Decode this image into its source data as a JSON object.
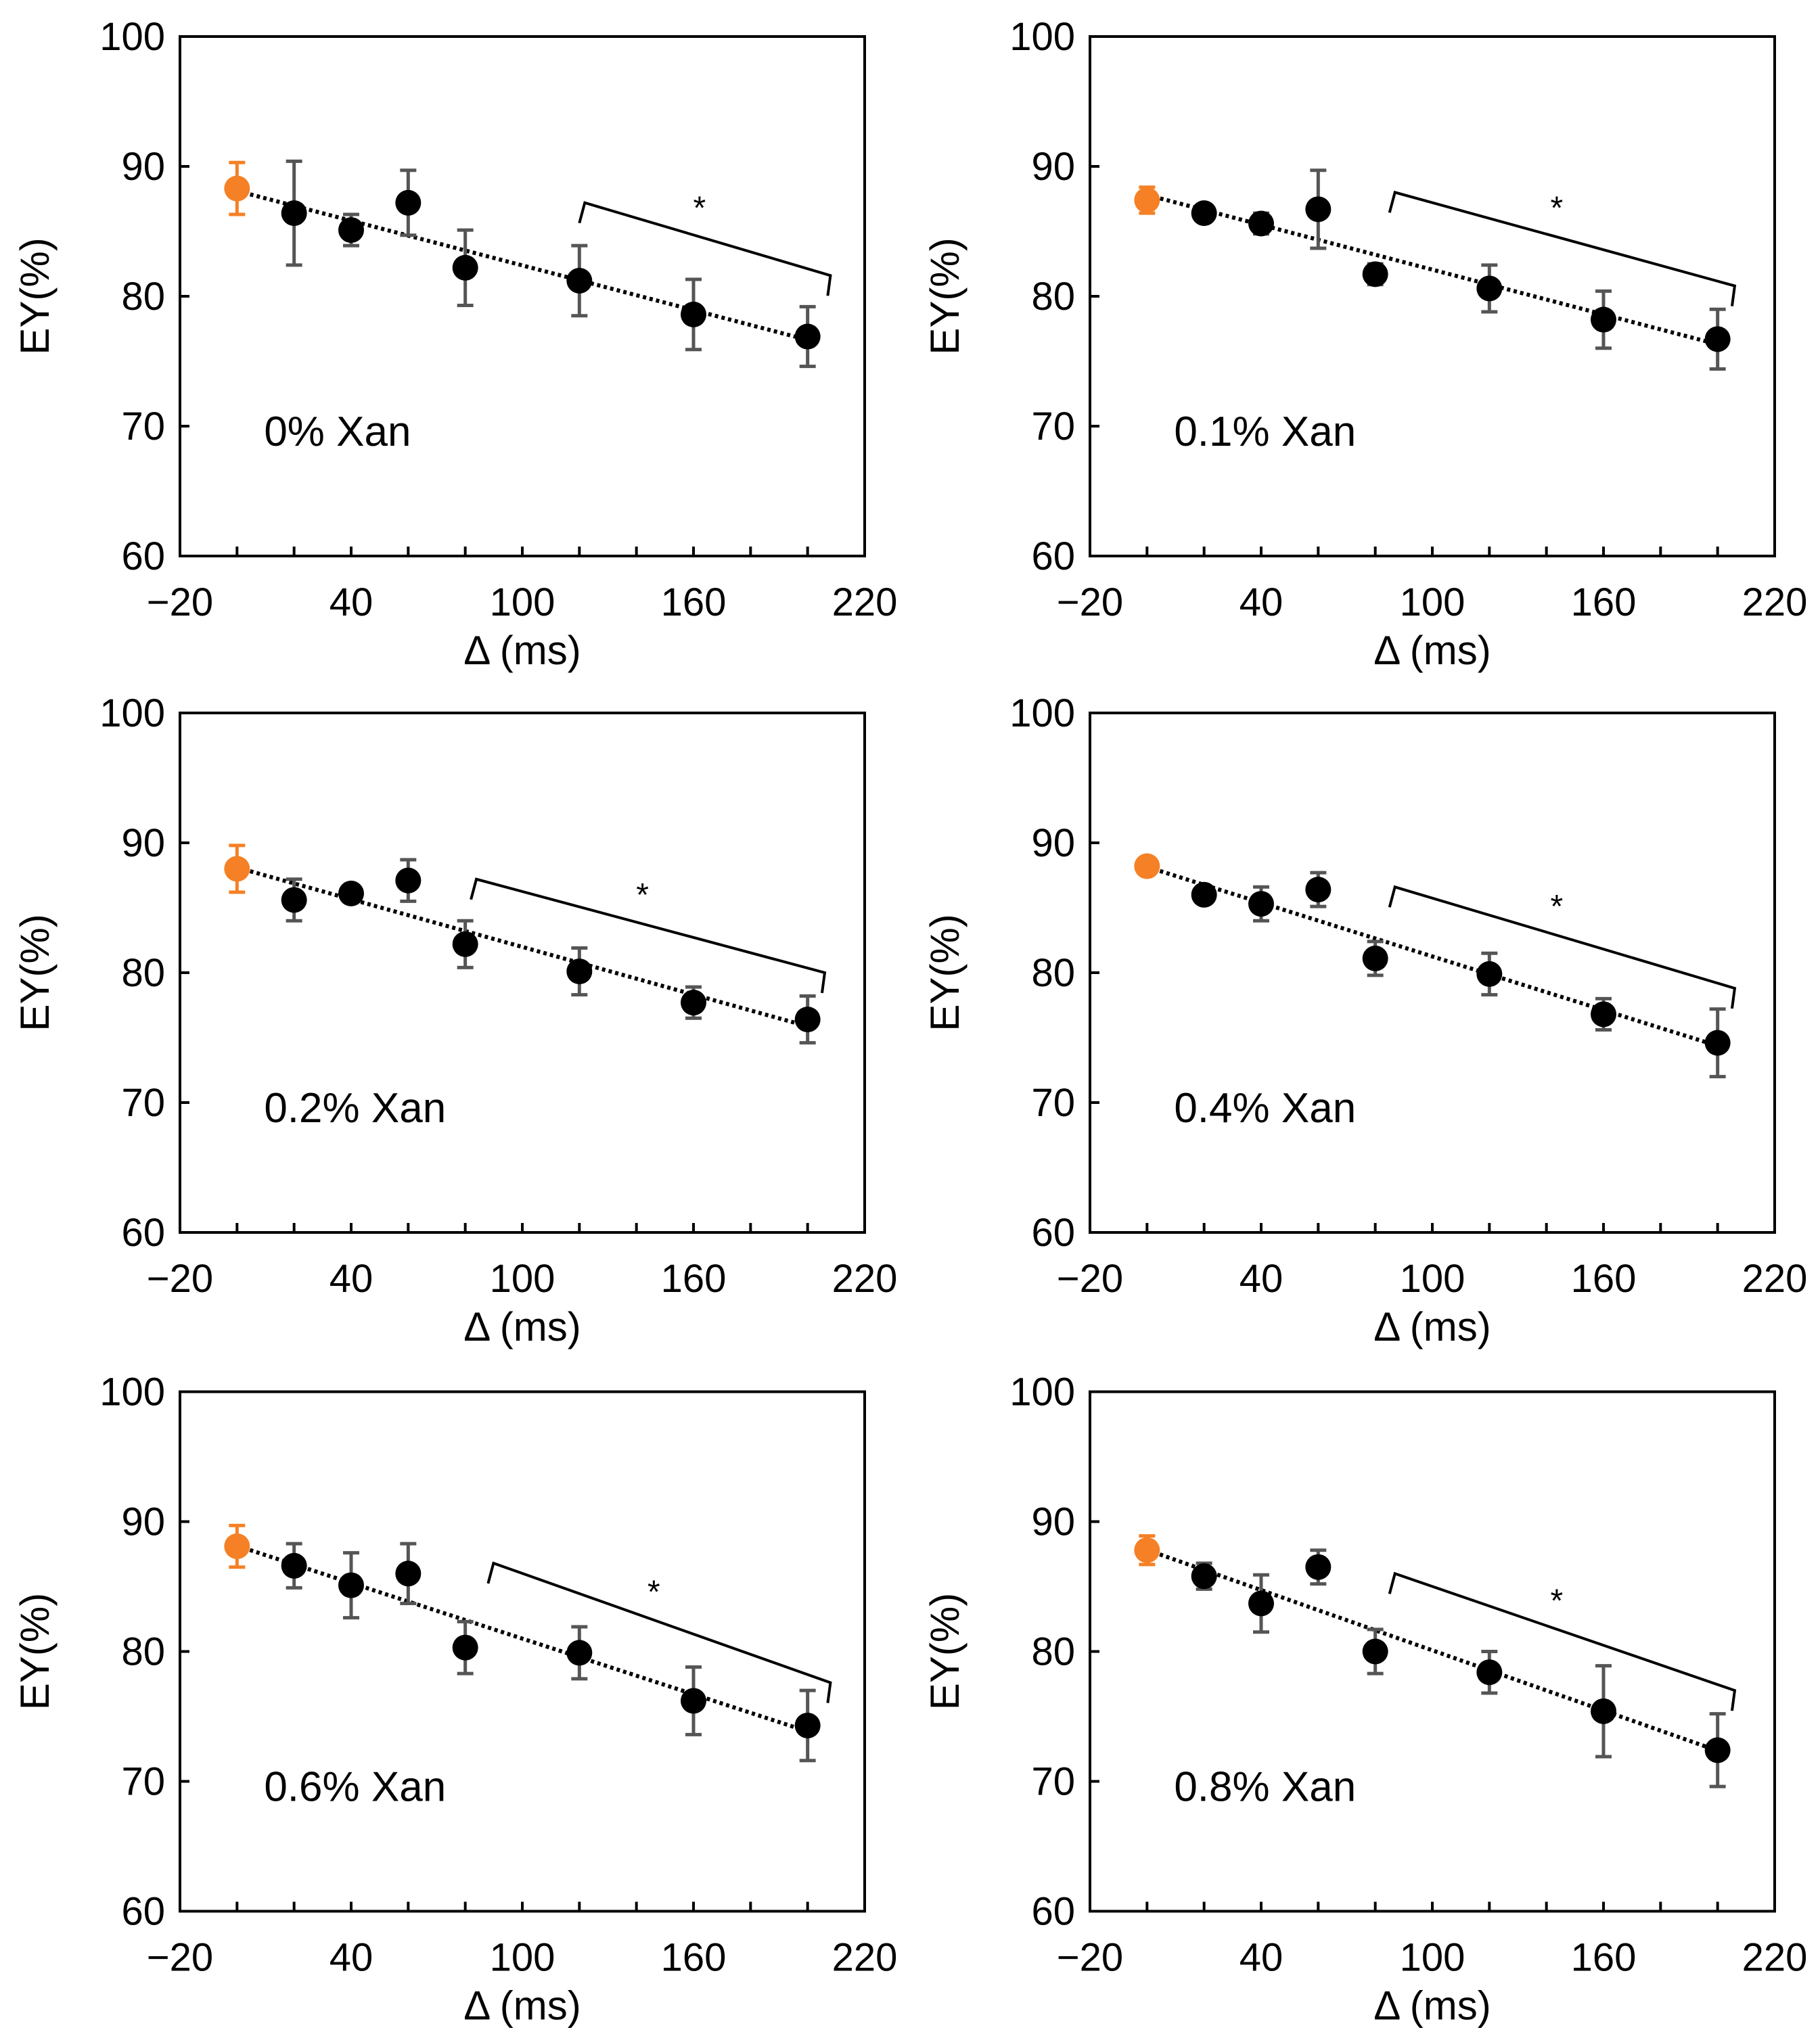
{
  "chart_data": [
    {
      "type": "scatter",
      "title": "0% Xan",
      "xlabel": "Δ (ms)",
      "ylabel": "EY(%)",
      "xlim": [
        -20,
        220
      ],
      "ylim": [
        60,
        100
      ],
      "xticks": [
        "−20",
        "40",
        "100",
        "160",
        "220"
      ],
      "yticks": [
        "60",
        "70",
        "80",
        "90",
        "100"
      ],
      "x": [
        0,
        20,
        40,
        60,
        80,
        120,
        160,
        200
      ],
      "y": [
        88.3,
        86.4,
        85.1,
        87.2,
        82.2,
        81.2,
        78.6,
        76.9
      ],
      "err": [
        2.0,
        4.0,
        1.2,
        2.5,
        2.9,
        2.7,
        2.7,
        2.3
      ],
      "highlight_color": "#F58025",
      "point_color": "#000000",
      "trendline": "linear, dotted",
      "significance": {
        "label": "*",
        "x_range": [
          120,
          208
        ],
        "y_range": [
          87.2,
          81.6
        ]
      }
    },
    {
      "type": "scatter",
      "title": "0.1% Xan",
      "xlabel": "Δ (ms)",
      "ylabel": "EY(%)",
      "xlim": [
        -20,
        220
      ],
      "ylim": [
        60,
        100
      ],
      "xticks": [
        "−20",
        "40",
        "100",
        "160",
        "220"
      ],
      "yticks": [
        "60",
        "70",
        "80",
        "90",
        "100"
      ],
      "x": [
        0,
        20,
        40,
        60,
        80,
        120,
        160,
        200
      ],
      "y": [
        87.4,
        86.4,
        85.6,
        86.7,
        81.7,
        80.6,
        78.2,
        76.7
      ],
      "err": [
        1.0,
        0.5,
        0.8,
        3.0,
        0.8,
        1.8,
        2.2,
        2.3
      ],
      "highlight_color": "#F58025",
      "point_color": "#000000",
      "trendline": "linear, dotted",
      "significance": {
        "label": "*",
        "x_range": [
          85,
          206
        ],
        "y_range": [
          88.0,
          80.8
        ]
      }
    },
    {
      "type": "scatter",
      "title": "0.2% Xan",
      "xlabel": "Δ (ms)",
      "ylabel": "EY(%)",
      "xlim": [
        -20,
        220
      ],
      "ylim": [
        60,
        100
      ],
      "xticks": [
        "−20",
        "40",
        "100",
        "160",
        "220"
      ],
      "yticks": [
        "60",
        "70",
        "80",
        "90",
        "100"
      ],
      "x": [
        0,
        20,
        40,
        60,
        80,
        120,
        160,
        200
      ],
      "y": [
        88.0,
        85.6,
        86.1,
        87.1,
        82.2,
        80.1,
        77.7,
        76.4
      ],
      "err": [
        1.8,
        1.6,
        0.5,
        1.6,
        1.8,
        1.8,
        1.2,
        1.8
      ],
      "highlight_color": "#F58025",
      "point_color": "#000000",
      "trendline": "linear, dotted",
      "significance": {
        "label": "*",
        "x_range": [
          82,
          206
        ],
        "y_range": [
          87.2,
          80.0
        ]
      }
    },
    {
      "type": "scatter",
      "title": "0.4% Xan",
      "xlabel": "Δ (ms)",
      "ylabel": "EY(%)",
      "xlim": [
        -20,
        220
      ],
      "ylim": [
        60,
        100
      ],
      "xticks": [
        "−20",
        "40",
        "100",
        "160",
        "220"
      ],
      "yticks": [
        "60",
        "70",
        "80",
        "90",
        "100"
      ],
      "x": [
        0,
        20,
        40,
        60,
        80,
        120,
        160,
        200
      ],
      "y": [
        88.2,
        86.0,
        85.3,
        86.4,
        81.1,
        79.9,
        76.8,
        74.6
      ],
      "err": [
        0.3,
        0.5,
        1.3,
        1.3,
        1.3,
        1.6,
        1.2,
        2.6
      ],
      "highlight_color": "#F58025",
      "point_color": "#000000",
      "trendline": "linear, dotted",
      "significance": {
        "label": "*",
        "x_range": [
          85,
          206
        ],
        "y_range": [
          86.6,
          78.8
        ]
      }
    },
    {
      "type": "scatter",
      "title": "0.6% Xan",
      "xlabel": "Δ (ms)",
      "ylabel": "EY(%)",
      "xlim": [
        -20,
        220
      ],
      "ylim": [
        60,
        100
      ],
      "xticks": [
        "−20",
        "40",
        "100",
        "160",
        "220"
      ],
      "yticks": [
        "60",
        "70",
        "80",
        "90",
        "100"
      ],
      "x": [
        0,
        20,
        40,
        60,
        80,
        120,
        160,
        200
      ],
      "y": [
        88.1,
        86.6,
        85.1,
        86.0,
        80.3,
        79.9,
        76.2,
        74.3
      ],
      "err": [
        1.6,
        1.7,
        2.5,
        2.3,
        2.0,
        2.0,
        2.6,
        2.7
      ],
      "highlight_color": "#F58025",
      "point_color": "#000000",
      "trendline": "linear, dotted",
      "significance": {
        "label": "*",
        "x_range": [
          88,
          208
        ],
        "y_range": [
          86.8,
          77.6
        ]
      }
    },
    {
      "type": "scatter",
      "title": "0.8% Xan",
      "xlabel": "Δ (ms)",
      "ylabel": "EY(%)",
      "xlim": [
        -20,
        220
      ],
      "ylim": [
        60,
        100
      ],
      "xticks": [
        "−20",
        "40",
        "100",
        "160",
        "220"
      ],
      "yticks": [
        "60",
        "70",
        "80",
        "90",
        "100"
      ],
      "x": [
        0,
        20,
        40,
        60,
        80,
        120,
        160,
        200
      ],
      "y": [
        87.8,
        85.8,
        83.7,
        86.5,
        80.0,
        78.4,
        75.4,
        72.4
      ],
      "err": [
        1.1,
        1.0,
        2.2,
        1.3,
        1.7,
        1.6,
        3.5,
        2.8
      ],
      "highlight_color": "#F58025",
      "point_color": "#000000",
      "trendline": "linear, dotted",
      "significance": {
        "label": "*",
        "x_range": [
          85,
          206
        ],
        "y_range": [
          86.0,
          77.0
        ]
      }
    }
  ]
}
